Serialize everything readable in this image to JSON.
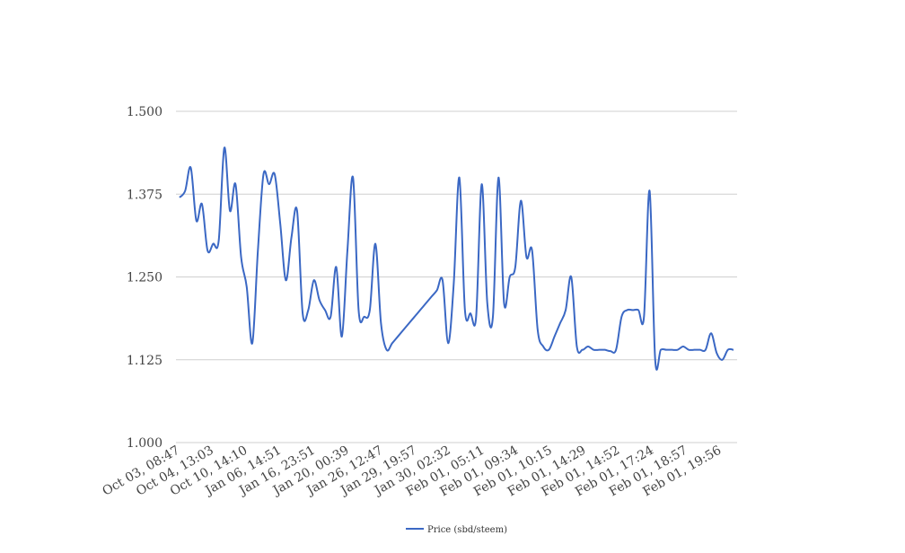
{
  "chart_data": {
    "type": "line",
    "title": "",
    "xlabel": "",
    "ylabel": "",
    "ylim": [
      1.0,
      1.5
    ],
    "y_ticks": [
      "1.000",
      "1.125",
      "1.250",
      "1.375",
      "1.500"
    ],
    "y_tick_values": [
      1.0,
      1.125,
      1.25,
      1.375,
      1.5
    ],
    "x_tick_labels": [
      "Oct 03, 08:47",
      "Oct 04, 13:03",
      "Oct 10, 14:10",
      "Jan 06, 14:51",
      "Jan 16, 23:51",
      "Jan 20, 00:39",
      "Jan 26, 12:47",
      "Jan 29, 19:57",
      "Jan 30, 02:32",
      "Feb 01, 05:11",
      "Feb 01, 09:34",
      "Feb 01, 10:15",
      "Feb 01, 14:29",
      "Feb 01, 14:52",
      "Feb 01, 17:24",
      "Feb 01, 18:57",
      "Feb 01, 19:56"
    ],
    "grid": true,
    "legend": "bottom",
    "line_color": "#3b68c4",
    "series": [
      {
        "name": "Price (sbd/steem)",
        "values": [
          1.37,
          1.38,
          1.415,
          1.335,
          1.36,
          1.29,
          1.3,
          1.305,
          1.445,
          1.35,
          1.39,
          1.28,
          1.235,
          1.15,
          1.29,
          1.405,
          1.39,
          1.405,
          1.33,
          1.245,
          1.31,
          1.35,
          1.195,
          1.2,
          1.245,
          1.215,
          1.2,
          1.19,
          1.265,
          1.16,
          1.29,
          1.4,
          1.2,
          1.19,
          1.2,
          1.3,
          1.18,
          1.14,
          1.15,
          1.16,
          1.17,
          1.18,
          1.19,
          1.2,
          1.21,
          1.22,
          1.23,
          1.245,
          1.15,
          1.24,
          1.4,
          1.2,
          1.195,
          1.19,
          1.39,
          1.21,
          1.19,
          1.4,
          1.21,
          1.25,
          1.265,
          1.365,
          1.28,
          1.29,
          1.17,
          1.145,
          1.14,
          1.16,
          1.18,
          1.2,
          1.25,
          1.145,
          1.14,
          1.145,
          1.14,
          1.14,
          1.14,
          1.138,
          1.14,
          1.19,
          1.2,
          1.2,
          1.2,
          1.19,
          1.38,
          1.125,
          1.14,
          1.14,
          1.14,
          1.14,
          1.145,
          1.14,
          1.14,
          1.14,
          1.14,
          1.165,
          1.135,
          1.125,
          1.14,
          1.14
        ]
      }
    ]
  }
}
